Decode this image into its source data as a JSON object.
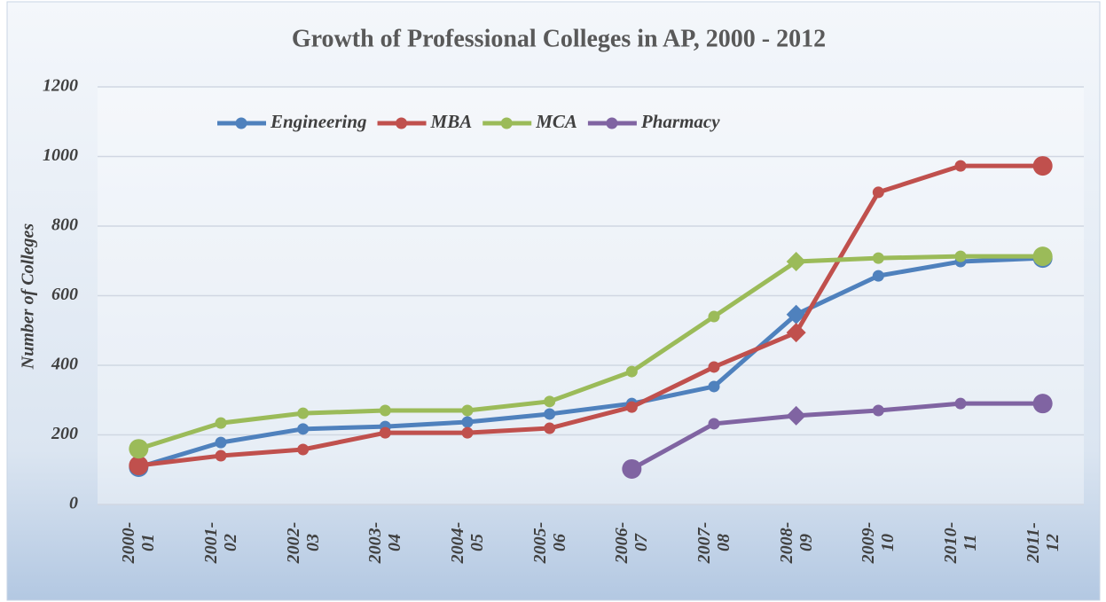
{
  "chart_data": {
    "type": "line",
    "title": "Growth of Professional Colleges in AP, 2000 - 2012",
    "y_label": "Number of Colleges",
    "categories": [
      "2000-01",
      "2001-02",
      "2002-03",
      "2003-04",
      "2004-05",
      "2005-06",
      "2006-07",
      "2007-08",
      "2008-09",
      "2009-10",
      "2010-11",
      "2011-12"
    ],
    "series": [
      {
        "name": "Engineering",
        "color": "#4f81bd",
        "values": [
          107,
          178,
          217,
          224,
          237,
          260,
          290,
          339,
          546,
          657,
          698,
          708
        ]
      },
      {
        "name": "MBA",
        "color": "#c0504d",
        "values": [
          112,
          140,
          158,
          206,
          206,
          219,
          280,
          395,
          494,
          897,
          973,
          973
        ]
      },
      {
        "name": "MCA",
        "color": "#9bbb59",
        "values": [
          160,
          234,
          262,
          270,
          270,
          296,
          382,
          540,
          698,
          708,
          713,
          713
        ]
      },
      {
        "name": "Pharmacy",
        "color": "#8064a2",
        "values": [
          null,
          null,
          null,
          null,
          null,
          null,
          102,
          232,
          255,
          270,
          290,
          290
        ]
      }
    ],
    "ylim": [
      0,
      1200
    ],
    "yticks": [
      0,
      200,
      400,
      600,
      800,
      1000,
      1200
    ],
    "grid": true
  }
}
